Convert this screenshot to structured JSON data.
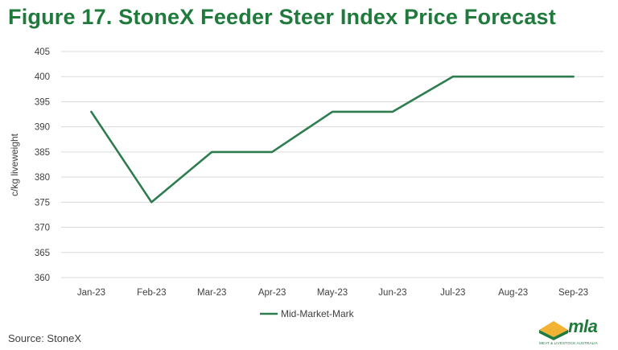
{
  "title": "Figure 17. StoneX Feeder Steer Index Price Forecast",
  "source": "Source: StoneX",
  "logo": {
    "word": "mla",
    "subtitle": "MEAT & LIVESTOCK AUSTRALIA"
  },
  "colors": {
    "accent": "#1f7a3c",
    "line": "#2e7d4f",
    "grid": "#d9d9d9"
  },
  "chart_data": {
    "type": "line",
    "title": "Figure 17. StoneX Feeder Steer Index Price Forecast",
    "xlabel": "",
    "ylabel": "c/kg liveweight",
    "ylim": [
      360,
      405
    ],
    "yticks": [
      360,
      365,
      370,
      375,
      380,
      385,
      390,
      395,
      400,
      405
    ],
    "categories": [
      "Jan-23",
      "Feb-23",
      "Mar-23",
      "Apr-23",
      "May-23",
      "Jun-23",
      "Jul-23",
      "Aug-23",
      "Sep-23"
    ],
    "grid": "horizontal",
    "legend": "bottom",
    "series": [
      {
        "name": "Mid-Market-Mark",
        "values": [
          393,
          375,
          385,
          385,
          393,
          393,
          400,
          400,
          400
        ]
      }
    ]
  }
}
